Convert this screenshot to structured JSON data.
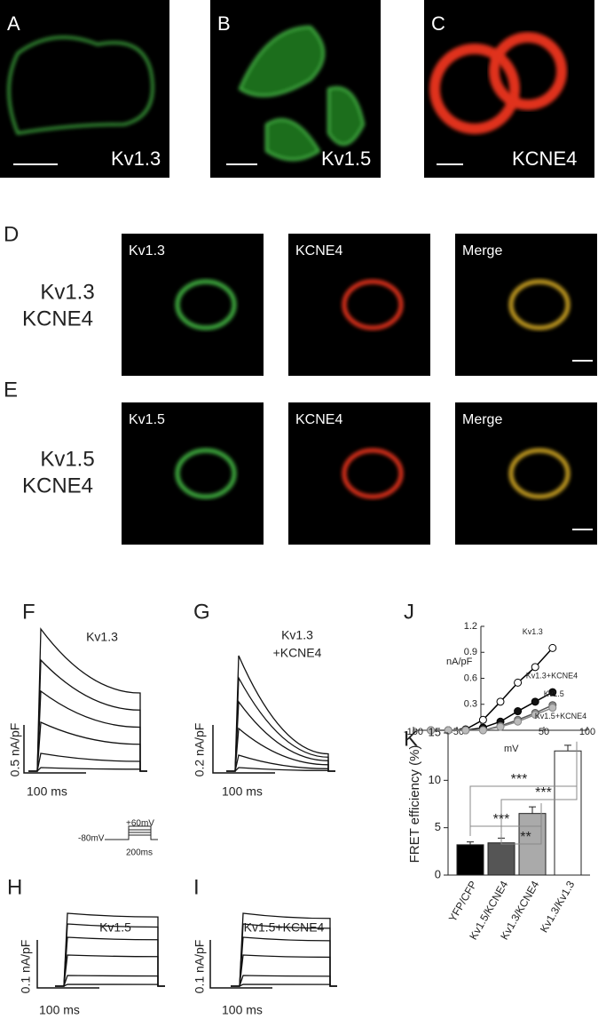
{
  "panels": {
    "A": {
      "letter": "A",
      "label": "Kv1.3"
    },
    "B": {
      "letter": "B",
      "label": "Kv1.5"
    },
    "C": {
      "letter": "C",
      "label": "KCNE4"
    },
    "D": {
      "letter": "D",
      "row_label": [
        "Kv1.3",
        "KCNE4"
      ],
      "image_labels": [
        "Kv1.3",
        "KCNE4",
        "Merge"
      ]
    },
    "E": {
      "letter": "E",
      "row_label": [
        "Kv1.5",
        "KCNE4"
      ],
      "image_labels": [
        "Kv1.5",
        "KCNE4",
        "Merge"
      ]
    },
    "F": {
      "letter": "F",
      "title": [
        "Kv1.3"
      ],
      "y_scale": "0.5 nA/pF",
      "x_scale": "100 ms"
    },
    "G": {
      "letter": "G",
      "title": [
        "Kv1.3",
        "+KCNE4"
      ],
      "y_scale": "0.2 nA/pF",
      "x_scale": "100 ms"
    },
    "protocol": {
      "hold": "-80mV",
      "step": "+60mV",
      "duration": "200ms"
    },
    "H": {
      "letter": "H",
      "title": [
        "Kv1.5"
      ],
      "y_scale": "0.1 nA/pF",
      "x_scale": "100 ms"
    },
    "I": {
      "letter": "I",
      "title": [
        "Kv1.5+KCNE4"
      ],
      "y_scale": "0.1 nA/pF",
      "x_scale": "100 ms"
    }
  },
  "chart_data": [
    {
      "type": "line",
      "panel": "J",
      "xlabel": "mV",
      "ylabel": "nA/pF",
      "x": [
        -80,
        -60,
        -40,
        -20,
        0,
        20,
        40,
        60
      ],
      "xlim": [
        -100,
        100
      ],
      "xticks": [
        -100,
        -50,
        50,
        100
      ],
      "ylim": [
        0,
        1.2
      ],
      "yticks": [
        0.3,
        0.6,
        0.9,
        1.2
      ],
      "series": [
        {
          "name": "Kv1.3",
          "color": "#000000",
          "fill": "#ffffff",
          "values": [
            0,
            0,
            0.01,
            0.12,
            0.33,
            0.55,
            0.73,
            0.95
          ]
        },
        {
          "name": "Kv1.3+KCNE4",
          "color": "#000000",
          "fill": "#111111",
          "values": [
            0,
            0,
            0,
            0.03,
            0.1,
            0.22,
            0.33,
            0.44
          ]
        },
        {
          "name": "Kv1.5",
          "color": "#555555",
          "fill": "#888888",
          "values": [
            0,
            0,
            0,
            0,
            0.05,
            0.12,
            0.2,
            0.29
          ]
        },
        {
          "name": "Kv1.5+KCNE4",
          "color": "#888888",
          "fill": "#bbbbbb",
          "values": [
            0,
            0,
            0,
            0,
            0.04,
            0.1,
            0.18,
            0.26
          ]
        }
      ]
    },
    {
      "type": "bar",
      "panel": "K",
      "ylabel": "FRET efficiency (%)",
      "categories": [
        "YFP/CFP",
        "Kv1.5/KCNE4",
        "Kv1.3/KCNE4",
        "Kv1.3/Kv1.3"
      ],
      "values": [
        3.2,
        3.4,
        6.5,
        13.1
      ],
      "errors": [
        0.3,
        0.5,
        0.7,
        0.6
      ],
      "colors": [
        "#000000",
        "#555555",
        "#aaaaaa",
        "#ffffff"
      ],
      "ylim": [
        0,
        15
      ],
      "yticks": [
        0,
        5,
        10,
        15
      ],
      "annotations": [
        "***",
        "***",
        "***",
        "**"
      ]
    }
  ]
}
